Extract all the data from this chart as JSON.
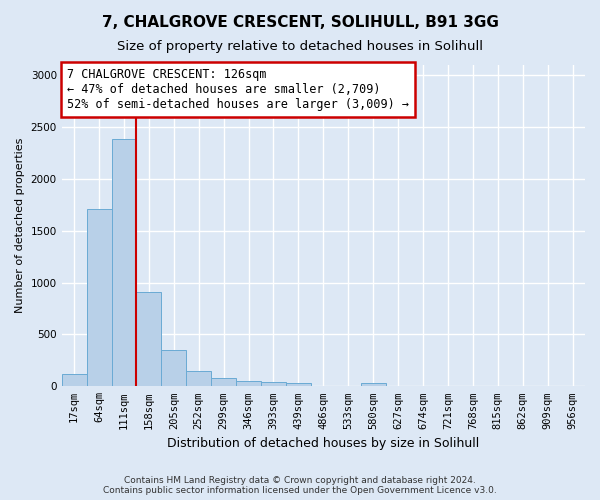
{
  "title_line1": "7, CHALGROVE CRESCENT, SOLIHULL, B91 3GG",
  "title_line2": "Size of property relative to detached houses in Solihull",
  "xlabel": "Distribution of detached houses by size in Solihull",
  "ylabel": "Number of detached properties",
  "footnote": "Contains HM Land Registry data © Crown copyright and database right 2024.\nContains public sector information licensed under the Open Government Licence v3.0.",
  "bar_labels": [
    "17sqm",
    "64sqm",
    "111sqm",
    "158sqm",
    "205sqm",
    "252sqm",
    "299sqm",
    "346sqm",
    "393sqm",
    "439sqm",
    "486sqm",
    "533sqm",
    "580sqm",
    "627sqm",
    "674sqm",
    "721sqm",
    "768sqm",
    "815sqm",
    "862sqm",
    "909sqm",
    "956sqm"
  ],
  "bar_values": [
    120,
    1710,
    2390,
    910,
    355,
    150,
    80,
    50,
    38,
    28,
    0,
    0,
    28,
    0,
    0,
    0,
    0,
    0,
    0,
    0,
    0
  ],
  "bar_color": "#b8d0e8",
  "bar_edge_color": "#6aaad4",
  "vline_color": "#cc0000",
  "vline_position": 2.5,
  "annotation_text_line1": "7 CHALGROVE CRESCENT: 126sqm",
  "annotation_text_line2": "← 47% of detached houses are smaller (2,709)",
  "annotation_text_line3": "52% of semi-detached houses are larger (3,009) →",
  "annotation_box_color": "#ffffff",
  "annotation_box_edge_color": "#cc0000",
  "ylim": [
    0,
    3100
  ],
  "yticks": [
    0,
    500,
    1000,
    1500,
    2000,
    2500,
    3000
  ],
  "background_color": "#dde8f5",
  "plot_background": "#dde8f5",
  "grid_color": "#ffffff",
  "title_fontsize": 11,
  "subtitle_fontsize": 9.5,
  "ylabel_fontsize": 8,
  "xlabel_fontsize": 9,
  "tick_fontsize": 7.5,
  "footnote_fontsize": 6.5
}
